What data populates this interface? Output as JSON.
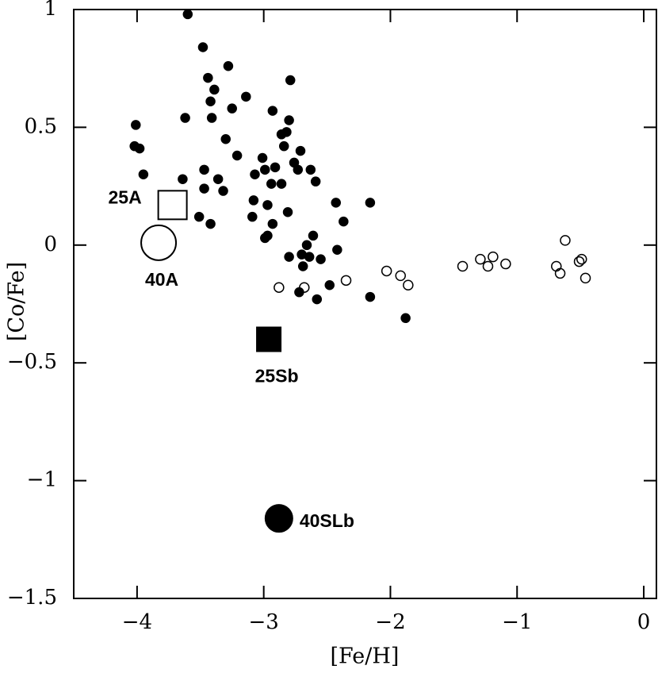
{
  "chart_data": {
    "type": "scatter",
    "x_label": "[Fe/H]",
    "y_label": "[Co/Fe]",
    "xlim": [
      -4.5,
      0.1
    ],
    "ylim": [
      -1.5,
      1
    ],
    "xticks": [
      -4,
      -3,
      -2,
      -1,
      0
    ],
    "yticks": [
      -1.5,
      -1,
      -0.5,
      0,
      0.5,
      1
    ],
    "series": [
      {
        "marker": "filled",
        "color": "#000000",
        "x": [
          -3.6,
          -3.48,
          -3.28,
          -3.44,
          -2.79,
          -3.39,
          -3.42,
          -3.14,
          -3.25,
          -2.93,
          -3.41,
          -3.62,
          -2.8,
          -4.01,
          -2.82,
          -2.86,
          -4.02,
          -3.98,
          -3.3,
          -2.71,
          -2.84,
          -3.21,
          -3.01,
          -2.76,
          -3.95,
          -3.47,
          -2.63,
          -3.64,
          -3.36,
          -3.07,
          -2.99,
          -2.91,
          -2.73,
          -2.59,
          -3.32,
          -3.47,
          -2.94,
          -2.86,
          -2.43,
          -2.16,
          -3.08,
          -2.97,
          -2.81,
          -3.51,
          -2.37,
          -3.09,
          -2.93,
          -3.42,
          -2.61,
          -2.97,
          -2.66,
          -2.99,
          -2.8,
          -2.7,
          -2.55,
          -2.42,
          -2.64,
          -2.69,
          -2.72,
          -2.48,
          -2.58,
          -2.16,
          -1.88
        ],
        "y": [
          0.98,
          0.84,
          0.76,
          0.71,
          0.7,
          0.66,
          0.61,
          0.63,
          0.58,
          0.57,
          0.54,
          0.54,
          0.53,
          0.51,
          0.48,
          0.47,
          0.42,
          0.41,
          0.45,
          0.4,
          0.42,
          0.38,
          0.37,
          0.35,
          0.3,
          0.32,
          0.32,
          0.28,
          0.28,
          0.3,
          0.32,
          0.33,
          0.32,
          0.27,
          0.23,
          0.24,
          0.26,
          0.26,
          0.18,
          0.18,
          0.19,
          0.17,
          0.14,
          0.12,
          0.1,
          0.12,
          0.09,
          0.09,
          0.04,
          0.04,
          0.0,
          0.03,
          -0.05,
          -0.04,
          -0.06,
          -0.02,
          -0.05,
          -0.09,
          -0.2,
          -0.17,
          -0.23,
          -0.22,
          -0.31
        ]
      },
      {
        "marker": "open",
        "color": "#000000",
        "x": [
          -2.88,
          -2.68,
          -2.35,
          -2.03,
          -1.92,
          -1.86,
          -1.43,
          -1.29,
          -1.23,
          -1.19,
          -1.09,
          -0.62,
          -0.69,
          -0.66,
          -0.51,
          -0.49,
          -0.46
        ],
        "y": [
          -0.18,
          -0.18,
          -0.15,
          -0.11,
          -0.13,
          -0.17,
          -0.09,
          -0.06,
          -0.09,
          -0.05,
          -0.08,
          0.02,
          -0.09,
          -0.12,
          -0.07,
          -0.06,
          -0.14
        ]
      }
    ],
    "models": [
      {
        "label": "25A",
        "x": -3.72,
        "y": 0.17,
        "marker": "square",
        "filled": false
      },
      {
        "label": "40A",
        "x": -3.83,
        "y": 0.01,
        "marker": "circle",
        "filled": false
      },
      {
        "label": "25Sb",
        "x": -2.96,
        "y": -0.4,
        "marker": "square",
        "filled": true
      },
      {
        "label": "40SLb",
        "x": -2.88,
        "y": -1.16,
        "marker": "circle",
        "filled": true
      }
    ]
  }
}
